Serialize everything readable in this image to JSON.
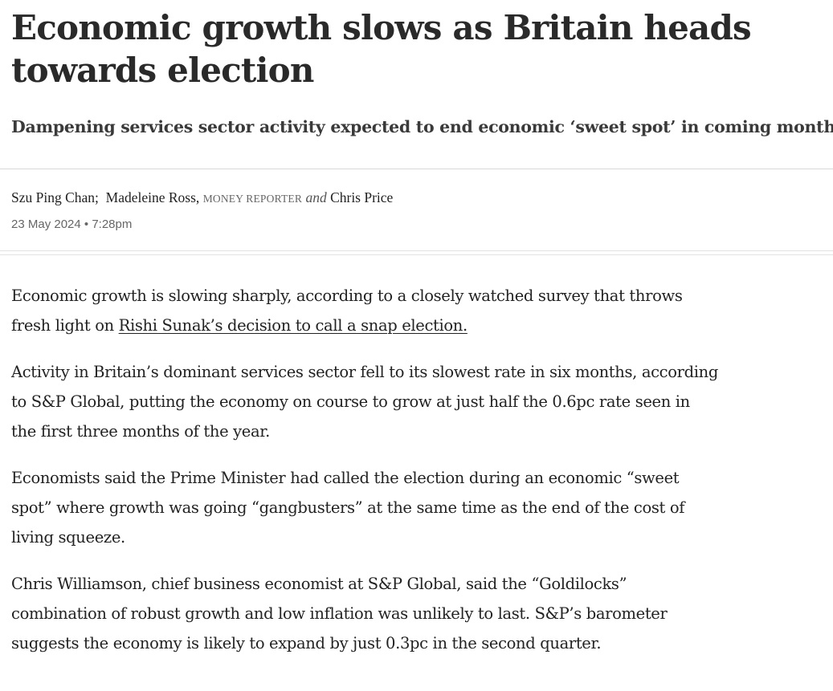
{
  "article": {
    "headline": "Economic growth slows as Britain heads towards election",
    "standfirst": "Dampening services sector activity expected to end economic ‘sweet spot’ in coming months",
    "byline": {
      "author1": "Szu Ping Chan;",
      "author2": "Madeleine Ross,",
      "author2_role": "MONEY REPORTER",
      "conjunction": "and",
      "author3": "Chris Price"
    },
    "date": "23 May 2024 • 7:28pm",
    "paragraphs": {
      "p1_before_link": "Economic growth is slowing sharply, according to a closely watched survey that throws fresh light on ",
      "p1_link": "Rishi Sunak’s decision to call a snap election.",
      "p2": "Activity in Britain’s dominant services sector fell to its slowest rate in six months, according to S&P Global, putting the economy on course to grow at just half the 0.6pc rate seen in the first three months of the year.",
      "p3": "Economists said the Prime Minister had called the election during an economic “sweet spot” where growth was going “gangbusters” at the same time as the end of the cost of living squeeze.",
      "p4": "Chris Williamson, chief business economist at S&P Global, said the “Goldilocks” combination of robust growth and low inflation was unlikely to last. S&P’s barometer suggests the economy is likely to expand by just 0.3pc in the second quarter."
    }
  }
}
